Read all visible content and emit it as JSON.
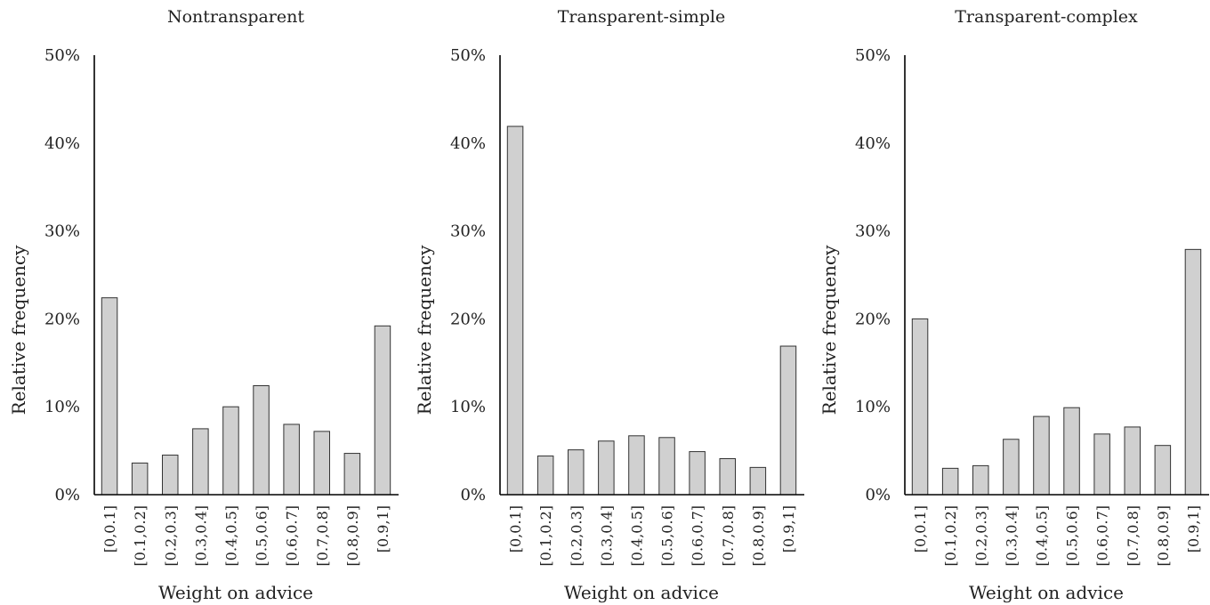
{
  "chart_data": [
    {
      "type": "bar",
      "title": "Nontransparent",
      "xlabel": "Weight on advice",
      "ylabel": "Relative frequency",
      "ylim": [
        0,
        50
      ],
      "yticks": [
        "0%",
        "10%",
        "20%",
        "30%",
        "40%",
        "50%"
      ],
      "categories": [
        "[0,0.1]",
        "[0.1,0.2]",
        "[0.2,0.3]",
        "[0.3,0.4]",
        "[0.4,0.5]",
        "[0.5,0.6]",
        "[0.6,0.7]",
        "[0.7,0.8]",
        "[0.8,0.9]",
        "[0.9,1]"
      ],
      "values": [
        22.4,
        3.6,
        4.5,
        7.5,
        10.0,
        12.4,
        8.0,
        7.2,
        4.7,
        19.2
      ]
    },
    {
      "type": "bar",
      "title": "Transparent-simple",
      "xlabel": "Weight on advice",
      "ylabel": "Relative frequency",
      "ylim": [
        0,
        50
      ],
      "yticks": [
        "0%",
        "10%",
        "20%",
        "30%",
        "40%",
        "50%"
      ],
      "categories": [
        "[0,0.1]",
        "[0.1,0.2]",
        "[0.2,0.3]",
        "[0.3,0.4]",
        "[0.4,0.5]",
        "[0.5,0.6]",
        "[0.6,0.7]",
        "[0.7,0.8]",
        "[0.8,0.9]",
        "[0.9,1]"
      ],
      "values": [
        41.9,
        4.4,
        5.1,
        6.1,
        6.7,
        6.5,
        4.9,
        4.1,
        3.1,
        16.9
      ]
    },
    {
      "type": "bar",
      "title": "Transparent-complex",
      "xlabel": "Weight on advice",
      "ylabel": "Relative frequency",
      "ylim": [
        0,
        50
      ],
      "yticks": [
        "0%",
        "10%",
        "20%",
        "30%",
        "40%",
        "50%"
      ],
      "categories": [
        "[0,0.1]",
        "[0.1,0.2]",
        "[0.2,0.3]",
        "[0.3,0.4]",
        "[0.4,0.5]",
        "[0.5,0.6]",
        "[0.6,0.7]",
        "[0.7,0.8]",
        "[0.8,0.9]",
        "[0.9,1]"
      ],
      "values": [
        20.0,
        3.0,
        3.3,
        6.3,
        8.9,
        9.9,
        6.9,
        7.7,
        5.6,
        27.9
      ]
    }
  ],
  "style": {
    "bar_fill": "#d0d0d0",
    "bar_stroke": "#333333",
    "axis_color": "#000000"
  }
}
